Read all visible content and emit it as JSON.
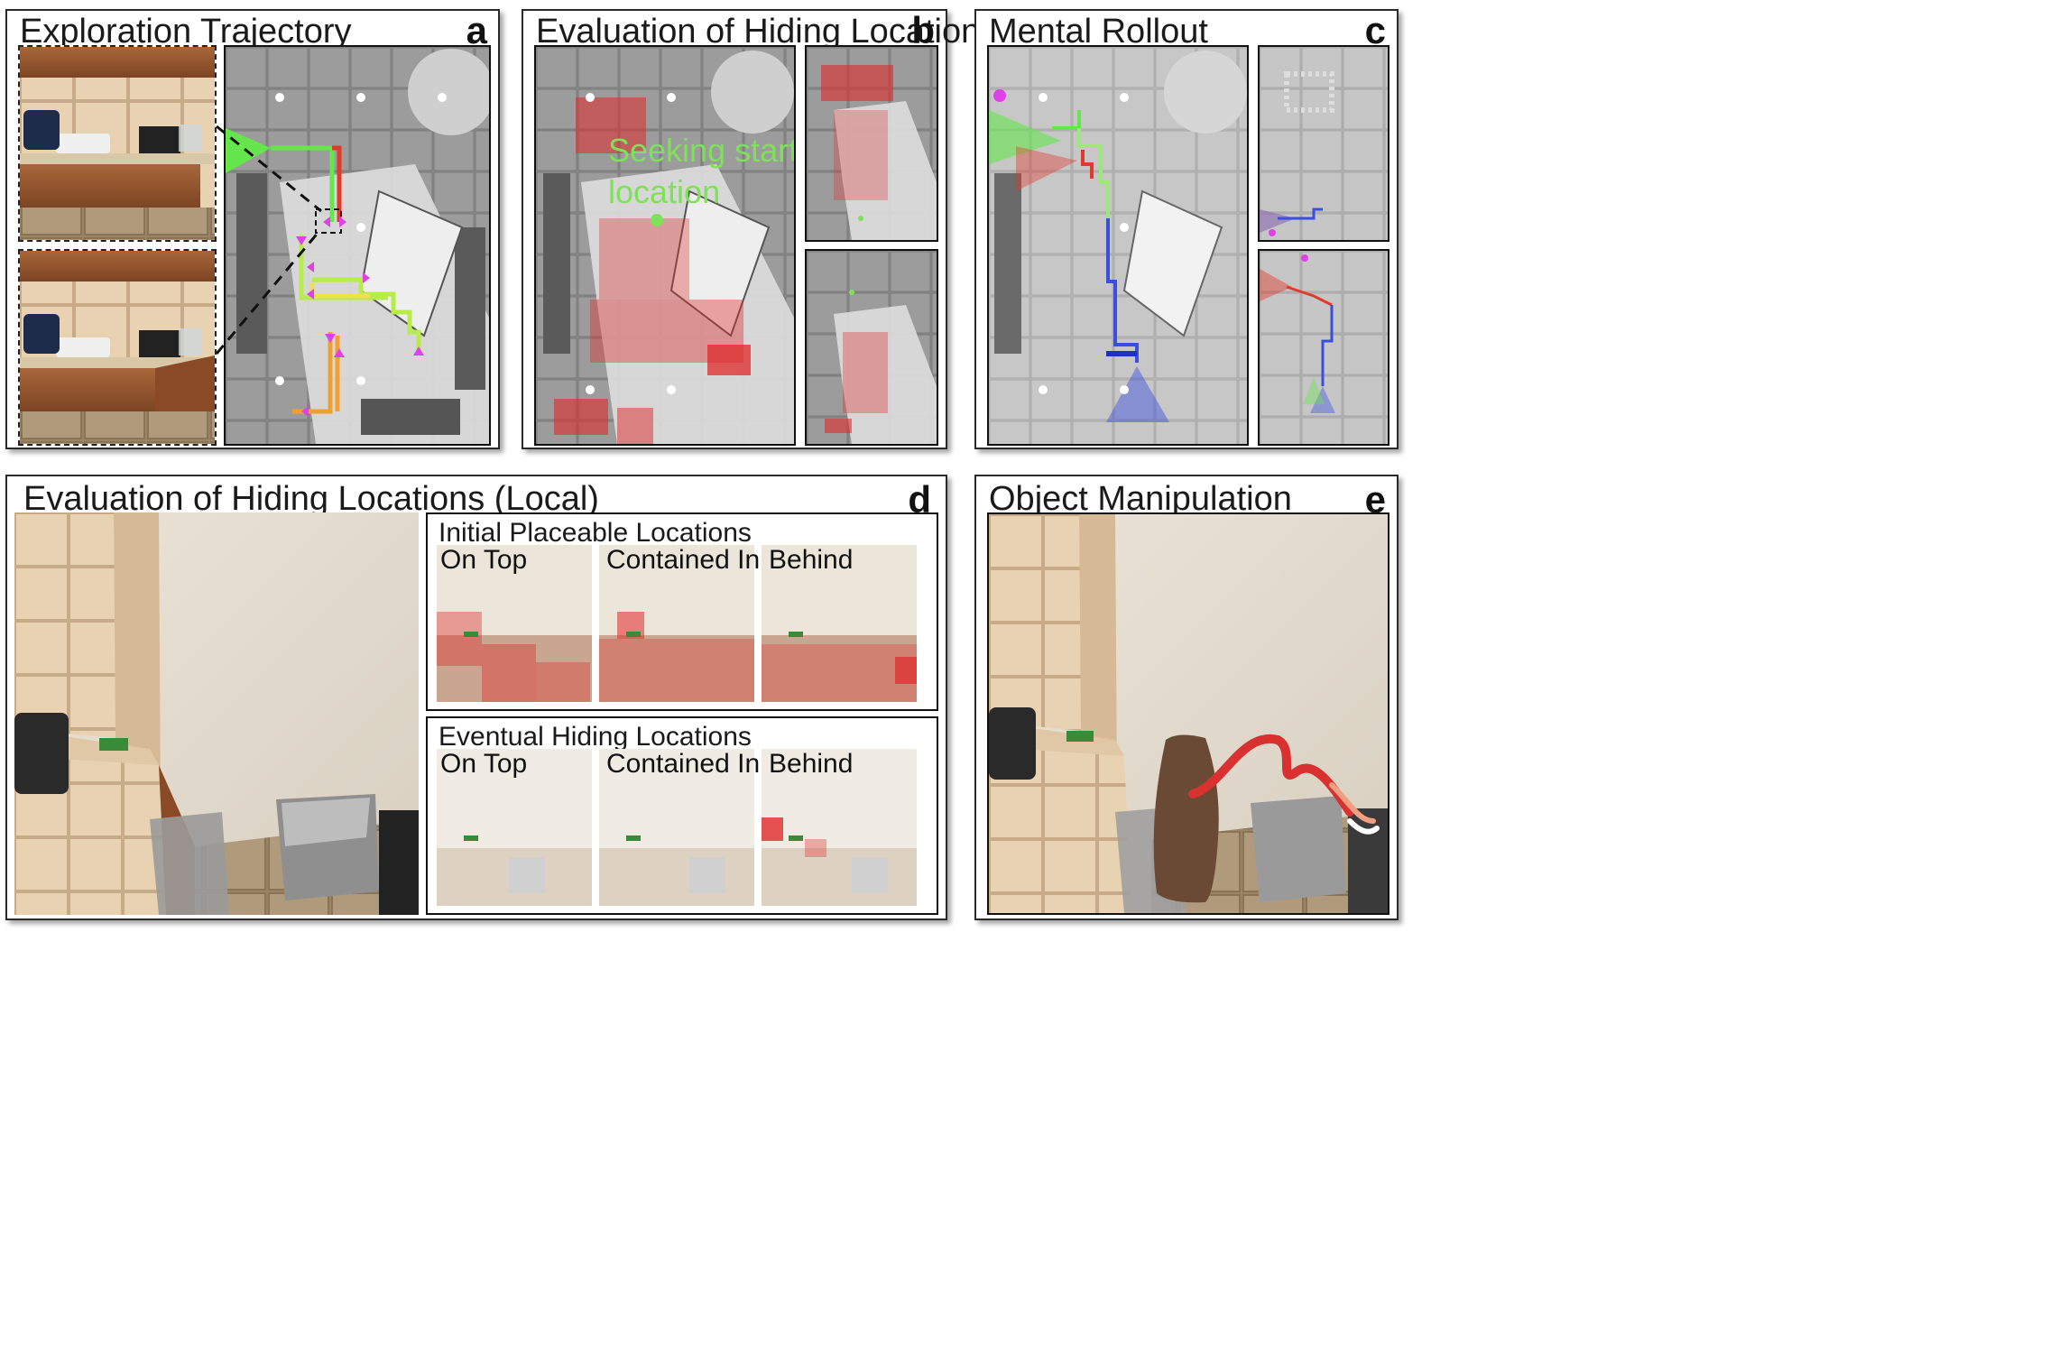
{
  "panels": {
    "a": {
      "title": "Exploration Trajectory",
      "letter": "a"
    },
    "b": {
      "title": "Evaluation of Hiding Locations",
      "letter": "b",
      "annotation_line1": "Seeking start",
      "annotation_line2": "location"
    },
    "c": {
      "title": "Mental Rollout",
      "letter": "c"
    },
    "d": {
      "title": "Evaluation of Hiding Locations (Local)",
      "letter": "d",
      "groups": [
        {
          "title": "Initial Placeable Locations",
          "tiles": [
            "On Top",
            "Contained In",
            "Behind"
          ]
        },
        {
          "title": "Eventual Hiding Locations",
          "tiles": [
            "On Top",
            "Contained In",
            "Behind"
          ]
        }
      ]
    },
    "e": {
      "title": "Object Manipulation",
      "letter": "e"
    }
  },
  "colors": {
    "path_green": "#66e64d",
    "path_red": "#e03a2a",
    "path_yellow": "#f0e04a",
    "path_orange": "#f0a030",
    "marker_magenta": "#e040e8",
    "heat_red": "#e02a2a",
    "rollout_blue": "#3a4ee0"
  }
}
